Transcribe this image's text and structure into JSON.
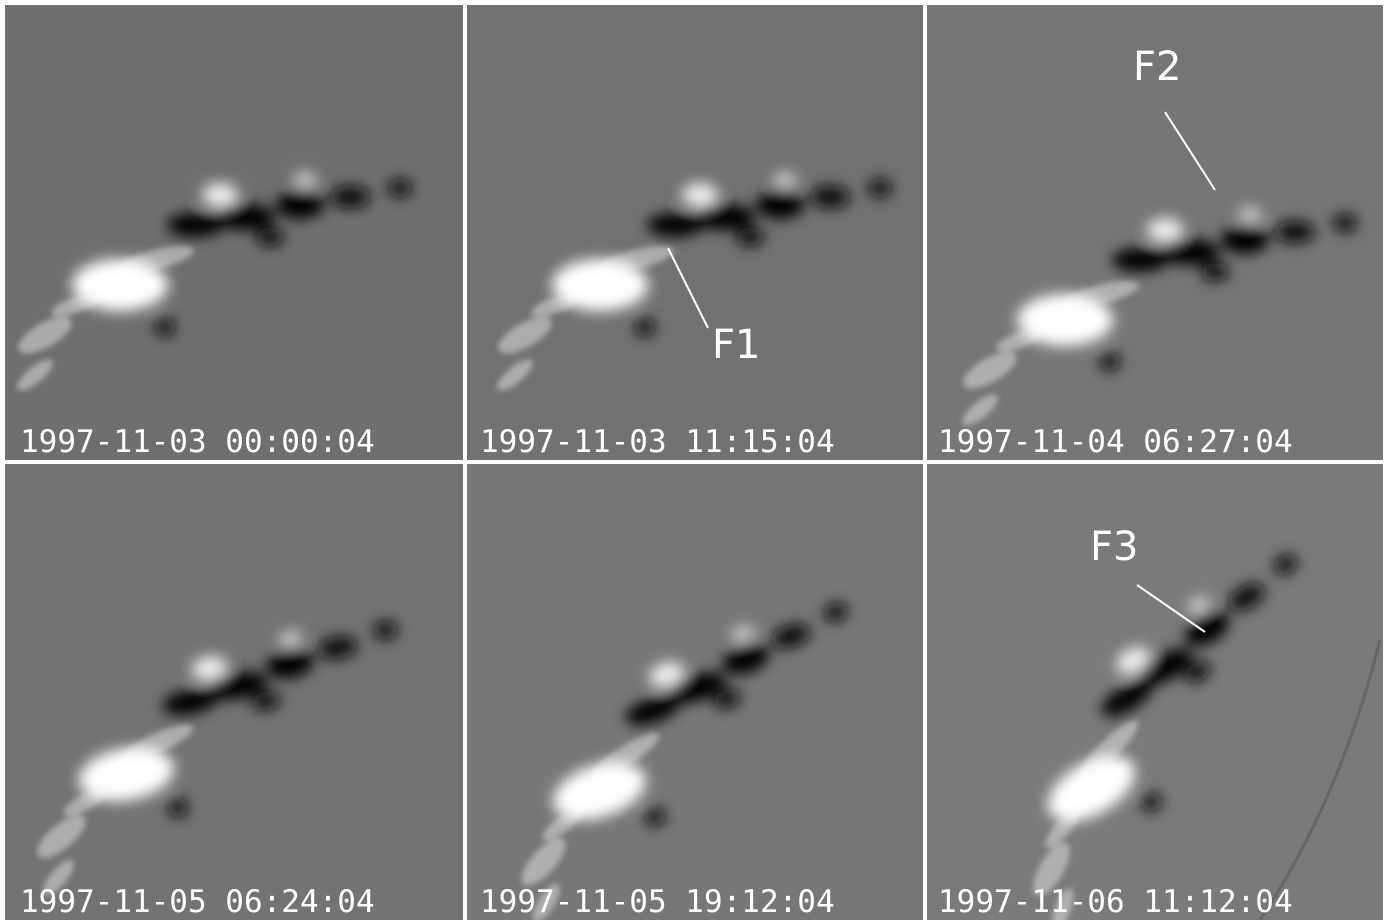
{
  "panels": [
    {
      "timestamp": "1997-11-03 00:00:04"
    },
    {
      "timestamp": "1997-11-03 11:15:04",
      "annotation": "F1"
    },
    {
      "timestamp": "1997-11-04 06:27:04",
      "annotation": "F2"
    },
    {
      "timestamp": "1997-11-05 06:24:04"
    },
    {
      "timestamp": "1997-11-05 19:12:04"
    },
    {
      "timestamp": "1997-11-06 11:12:04",
      "annotation": "F3"
    }
  ]
}
